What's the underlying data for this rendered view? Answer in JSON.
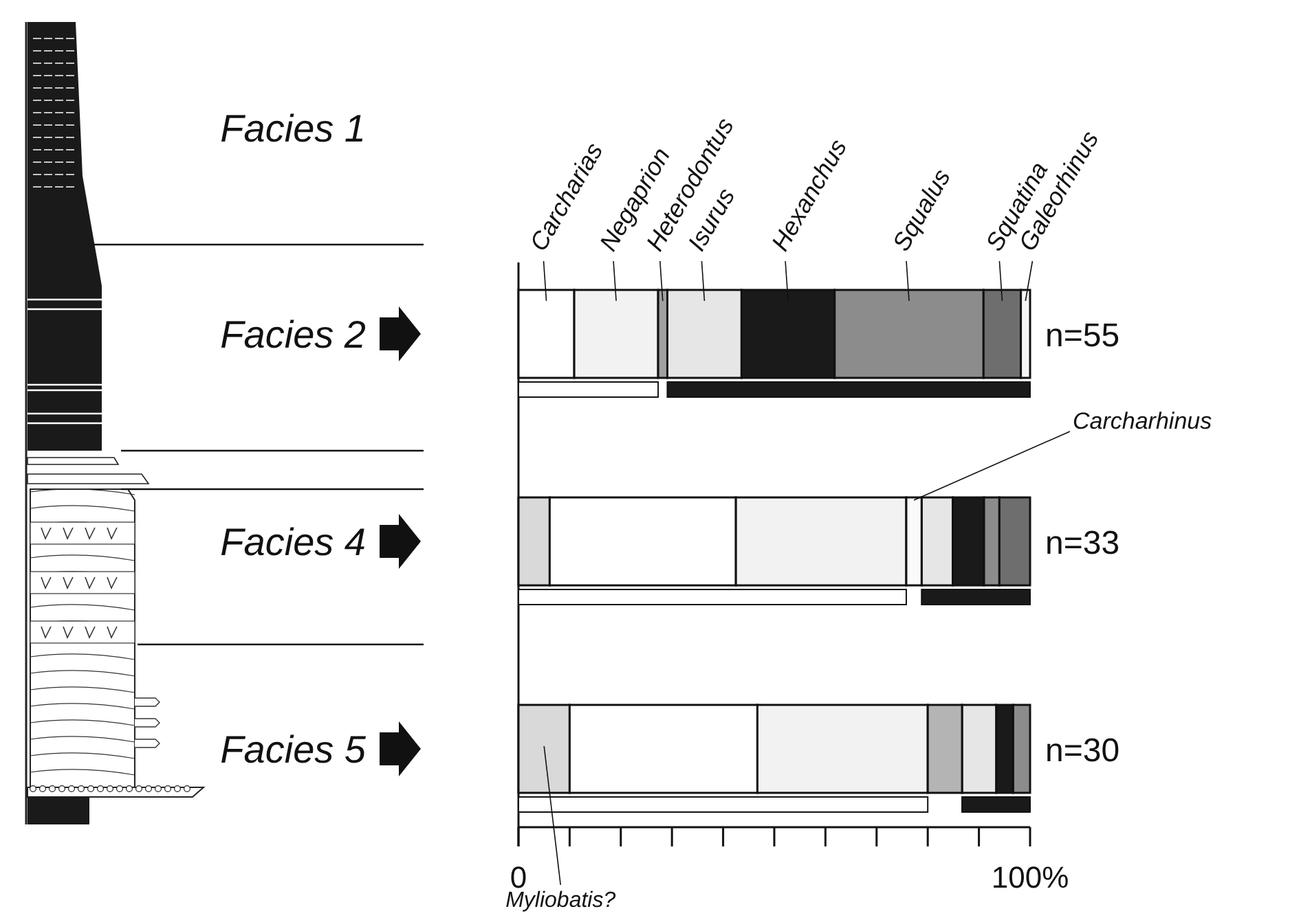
{
  "chart_data": {
    "type": "bar",
    "orientation": "horizontal",
    "categories": [
      "Facies 2",
      null,
      "Facies 4",
      null,
      "Facies 5",
      null
    ],
    "series": [
      {
        "name": "Myliobatis?",
        "color": "#d9d9d9",
        "values": [
          null,
          null,
          6.1,
          null,
          10,
          null
        ],
        "base": [
          null,
          null,
          0,
          null,
          0,
          null
        ]
      },
      {
        "name": "Carcharias",
        "color": "#ffffff",
        "values": [
          10.9,
          null,
          36.4,
          null,
          36.7,
          null
        ],
        "base": [
          0,
          null,
          6.1,
          null,
          10,
          null
        ]
      },
      {
        "name": "Negaprion",
        "color": "#f2f2f2",
        "values": [
          16.4,
          null,
          33.3,
          null,
          33.3,
          null
        ],
        "base": [
          10.9,
          null,
          42.5,
          null,
          46.7,
          null
        ]
      },
      {
        "name": "Heterodontus",
        "color": "#a0a0a0",
        "values": [
          1.8,
          null,
          null,
          null,
          null,
          null
        ],
        "base": [
          27.3,
          null,
          null,
          null,
          null,
          null
        ]
      },
      {
        "name": "Isurus",
        "color": "#e6e6e6",
        "values": [
          14.5,
          null,
          6.1,
          null,
          6.7,
          null
        ],
        "base": [
          29.1,
          null,
          78.8,
          null,
          86.7,
          null
        ]
      },
      {
        "name": "Carcharhinus",
        "color": "#fafafa",
        "values": [
          null,
          null,
          3,
          null,
          null,
          null
        ],
        "base": [
          null,
          null,
          75.8,
          null,
          null,
          null
        ]
      },
      {
        "color": "#b4b4b4",
        "values": [
          null,
          null,
          null,
          null,
          6.7,
          null
        ],
        "base": [
          null,
          null,
          null,
          null,
          80,
          null
        ]
      },
      {
        "name": "Hexanchus",
        "color": "#1a1a1a",
        "values": [
          18.2,
          null,
          6.1,
          null,
          3.3,
          null
        ],
        "base": [
          43.6,
          null,
          84.9,
          null,
          93.4,
          null
        ]
      },
      {
        "name": "Squalus",
        "color": "#8c8c8c",
        "values": [
          29.1,
          null,
          3,
          null,
          3.3,
          null
        ],
        "base": [
          61.8,
          null,
          91,
          null,
          96.7,
          null
        ]
      },
      {
        "name": "Squatina",
        "color": "#6e6e6e",
        "values": [
          7.3,
          null,
          6,
          null,
          null,
          null
        ],
        "base": [
          90.9,
          null,
          94,
          null,
          null,
          null
        ]
      },
      {
        "name": "Galeorhinus",
        "color": "#f5f5f5",
        "values": [
          1.8,
          null,
          null,
          null,
          null,
          null
        ],
        "base": [
          98.2,
          null,
          null,
          null,
          null,
          null
        ]
      },
      {
        "color": "#ffffff",
        "values": [
          null,
          27.3,
          null,
          75.8,
          null,
          80
        ],
        "base": [
          null,
          0,
          null,
          0,
          null,
          0
        ]
      },
      {
        "color": "#1a1a1a",
        "values": [
          null,
          70.9,
          null,
          21.2,
          null,
          13.3
        ],
        "base": [
          null,
          29.1,
          null,
          78.8,
          null,
          86.7
        ]
      }
    ],
    "xlim": [
      0,
      100
    ],
    "xticks": [
      {
        "value": 0,
        "label": "0"
      },
      {
        "value": 10,
        "label": null
      },
      {
        "value": 20,
        "label": null
      },
      {
        "value": 30,
        "label": null
      },
      {
        "value": 40,
        "label": null
      },
      {
        "value": 50,
        "label": null
      },
      {
        "value": 60,
        "label": null
      },
      {
        "value": 70,
        "label": null
      },
      {
        "value": 80,
        "label": null
      },
      {
        "value": 90,
        "label": null
      },
      {
        "value": 100,
        "label": "100%"
      }
    ],
    "annotations": [
      "Facies 1",
      "n=55",
      "n=33",
      "n=30"
    ]
  }
}
